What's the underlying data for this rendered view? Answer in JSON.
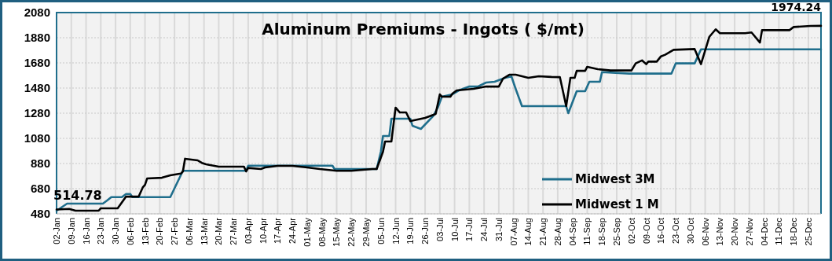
{
  "chart_data": {
    "type": "line",
    "title": "Aluminum Premiums - Ingots ( $/mt)",
    "xlim": [
      "--01-02",
      "--12-31"
    ],
    "ylim": [
      480,
      2080
    ],
    "yticks": [
      480,
      680,
      880,
      1080,
      1280,
      1480,
      1680,
      1880,
      2080
    ],
    "xticks": [
      {
        "value": "--01-02",
        "label": "02-Jan"
      },
      {
        "value": "--01-09",
        "label": "09-Jan"
      },
      {
        "value": "--01-16",
        "label": "16-Jan"
      },
      {
        "value": "--01-23",
        "label": "23-Jan"
      },
      {
        "value": "--01-30",
        "label": "30-Jan"
      },
      {
        "value": "--02-06",
        "label": "06-Feb"
      },
      {
        "value": "--02-13",
        "label": "13-Feb"
      },
      {
        "value": "--02-20",
        "label": "20-Feb"
      },
      {
        "value": "--02-27",
        "label": "27-Feb"
      },
      {
        "value": "--03-06",
        "label": "06-Mar"
      },
      {
        "value": "--03-13",
        "label": "13-Mar"
      },
      {
        "value": "--03-20",
        "label": "20-Mar"
      },
      {
        "value": "--03-27",
        "label": "27-Mar"
      },
      {
        "value": "--04-03",
        "label": "03-Apr"
      },
      {
        "value": "--04-10",
        "label": "10-Apr"
      },
      {
        "value": "--04-17",
        "label": "17-Apr"
      },
      {
        "value": "--04-24",
        "label": "24-Apr"
      },
      {
        "value": "--05-01",
        "label": "01-May"
      },
      {
        "value": "--05-08",
        "label": "08-May"
      },
      {
        "value": "--05-15",
        "label": "15-May"
      },
      {
        "value": "--05-22",
        "label": "22-May"
      },
      {
        "value": "--05-29",
        "label": "29-May"
      },
      {
        "value": "--06-05",
        "label": "05-Jun"
      },
      {
        "value": "--06-12",
        "label": "12-Jun"
      },
      {
        "value": "--06-19",
        "label": "19-Jun"
      },
      {
        "value": "--06-26",
        "label": "26-Jun"
      },
      {
        "value": "--07-03",
        "label": "03-Jul"
      },
      {
        "value": "--07-10",
        "label": "10-Jul"
      },
      {
        "value": "--07-17",
        "label": "17-Jul"
      },
      {
        "value": "--07-24",
        "label": "24-Jul"
      },
      {
        "value": "--07-31",
        "label": "31-Jul"
      },
      {
        "value": "--08-07",
        "label": "07-Aug"
      },
      {
        "value": "--08-14",
        "label": "14-Aug"
      },
      {
        "value": "--08-21",
        "label": "21-Aug"
      },
      {
        "value": "--08-28",
        "label": "28-Aug"
      },
      {
        "value": "--09-04",
        "label": "04-Sep"
      },
      {
        "value": "--09-11",
        "label": "11-Sep"
      },
      {
        "value": "--09-18",
        "label": "18-Sep"
      },
      {
        "value": "--09-25",
        "label": "25-Sep"
      },
      {
        "value": "--10-02",
        "label": "02-Oct"
      },
      {
        "value": "--10-09",
        "label": "09-Oct"
      },
      {
        "value": "--10-16",
        "label": "16-Oct"
      },
      {
        "value": "--10-23",
        "label": "23-Oct"
      },
      {
        "value": "--10-30",
        "label": "30-Oct"
      },
      {
        "value": "--11-06",
        "label": "06-Nov"
      },
      {
        "value": "--11-13",
        "label": "13-Nov"
      },
      {
        "value": "--11-20",
        "label": "20-Nov"
      },
      {
        "value": "--11-27",
        "label": "27-Nov"
      },
      {
        "value": "--12-04",
        "label": "04-Dec"
      },
      {
        "value": "--12-11",
        "label": "11-Dec"
      },
      {
        "value": "--12-18",
        "label": "18-Dec"
      },
      {
        "value": "--12-25",
        "label": "25-Dec"
      }
    ],
    "grid": true,
    "legend": "bottom right",
    "series": [
      {
        "name": "Midwest 3M",
        "color": "#1f6e8c",
        "x": [
          "--01-02",
          "--01-07",
          "--01-24",
          "--01-26",
          "--01-28",
          "--02-02",
          "--02-04",
          "--02-06",
          "--02-07",
          "--02-25",
          "--03-03",
          "--04-02",
          "--04-03",
          "--05-13",
          "--05-14",
          "--06-03",
          "--06-05",
          "--06-06",
          "--06-09",
          "--06-10",
          "--06-19",
          "--06-20",
          "--06-24",
          "--06-30",
          "--07-02",
          "--07-04",
          "--07-09",
          "--07-12",
          "--07-17",
          "--07-21",
          "--07-25",
          "--07-29",
          "--08-03",
          "--08-06",
          "--08-08",
          "--08-11",
          "--09-01",
          "--09-02",
          "--09-06",
          "--09-10",
          "--09-12",
          "--09-17",
          "--09-18",
          "--10-01",
          "--10-21",
          "--10-23",
          "--11-01",
          "--11-04",
          "--12-31"
        ],
        "values": [
          505,
          561,
          561,
          586,
          613,
          613,
          638,
          638,
          613,
          613,
          822,
          822,
          863,
          863,
          836,
          836,
          974,
          1099,
          1099,
          1236,
          1236,
          1180,
          1155,
          1261,
          1324,
          1411,
          1430,
          1461,
          1492,
          1492,
          1524,
          1530,
          1561,
          1572,
          1474,
          1336,
          1336,
          1280,
          1455,
          1455,
          1530,
          1530,
          1607,
          1595,
          1595,
          1676,
          1676,
          1788,
          1788
        ]
      },
      {
        "name": "Midwest 1 M",
        "color": "#000000",
        "x": [
          "--01-02",
          "--01-08",
          "--01-11",
          "--01-22",
          "--01-23",
          "--01-31",
          "--02-04",
          "--02-10",
          "--02-12",
          "--02-13",
          "--02-14",
          "--02-21",
          "--02-25",
          "--03-02",
          "--03-03",
          "--03-04",
          "--03-10",
          "--03-12",
          "--03-14",
          "--03-20",
          "--04-01",
          "--04-02",
          "--04-03",
          "--04-09",
          "--04-11",
          "--04-17",
          "--04-24",
          "--05-01",
          "--05-07",
          "--05-15",
          "--05-22",
          "--06-01",
          "--06-03",
          "--06-06",
          "--06-07",
          "--06-10",
          "--06-11",
          "--06-12",
          "--06-14",
          "--06-17",
          "--06-19",
          "--06-26",
          "--07-01",
          "--07-03",
          "--07-04",
          "--07-08",
          "--07-09",
          "--07-11",
          "--07-19",
          "--07-25",
          "--07-31",
          "--08-02",
          "--08-05",
          "--08-08",
          "--08-14",
          "--08-19",
          "--08-25",
          "--08-29",
          "--09-01",
          "--09-03",
          "--09-05",
          "--09-06",
          "--09-10",
          "--09-11",
          "--09-16",
          "--09-22",
          "--10-02",
          "--10-04",
          "--10-07",
          "--10-09",
          "--10-10",
          "--10-14",
          "--10-16",
          "--10-18",
          "--10-22",
          "--11-01",
          "--11-04",
          "--11-08",
          "--11-11",
          "--11-13",
          "--11-25",
          "--11-28",
          "--12-02",
          "--12-03",
          "--12-16",
          "--12-18",
          "--12-26",
          "--12-31"
        ],
        "values": [
          514.78,
          519,
          505,
          505,
          524,
          524,
          617,
          617,
          692,
          711,
          761,
          767,
          786,
          800,
          817,
          918,
          905,
          885,
          874,
          855,
          855,
          817,
          845,
          836,
          849,
          861,
          861,
          849,
          836,
          822,
          822,
          836,
          836,
          974,
          1055,
          1055,
          1192,
          1324,
          1286,
          1286,
          1217,
          1242,
          1274,
          1430,
          1411,
          1411,
          1436,
          1461,
          1474,
          1492,
          1492,
          1555,
          1586,
          1586,
          1561,
          1574,
          1568,
          1567,
          1336,
          1561,
          1561,
          1617,
          1617,
          1649,
          1630,
          1620,
          1620,
          1676,
          1700,
          1670,
          1690,
          1690,
          1732,
          1745,
          1784,
          1790,
          1670,
          1888,
          1947,
          1916,
          1916,
          1922,
          1842,
          1940,
          1940,
          1965,
          1974,
          1974.24
        ]
      }
    ],
    "annotations": [
      {
        "text": "514.78",
        "x": "--01-02",
        "y": 514.78
      },
      {
        "text": "1974.24",
        "x": "--12-31",
        "y": 1974.24
      }
    ]
  }
}
